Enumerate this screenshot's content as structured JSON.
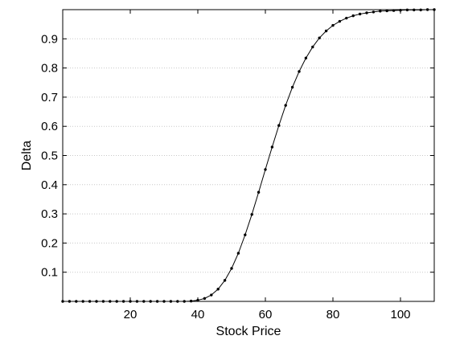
{
  "chart_data": {
    "type": "line",
    "title": "",
    "xlabel": "Stock Price",
    "ylabel": "Delta",
    "xlim": [
      0,
      110
    ],
    "ylim": [
      0,
      1
    ],
    "xticks": [
      20,
      40,
      60,
      80,
      100
    ],
    "yticks": [
      0.1,
      0.2,
      0.3,
      0.4,
      0.5,
      0.6,
      0.7,
      0.8,
      0.9
    ],
    "grid": "horizontal-dotted",
    "legend": "none",
    "series": [
      {
        "color": "#000000",
        "marker": "dot",
        "x": [
          0,
          2,
          4,
          6,
          8,
          10,
          12,
          14,
          16,
          18,
          20,
          22,
          24,
          26,
          28,
          30,
          32,
          34,
          36,
          38,
          40,
          42,
          44,
          46,
          48,
          50,
          52,
          54,
          56,
          58,
          60,
          62,
          64,
          66,
          68,
          70,
          72,
          74,
          76,
          78,
          80,
          82,
          84,
          86,
          88,
          90,
          92,
          94,
          96,
          98,
          100,
          102,
          104,
          106,
          108,
          110
        ],
        "y": [
          0,
          0,
          0,
          0,
          0,
          0,
          0,
          0,
          0,
          0,
          0,
          0,
          0,
          0,
          0,
          0,
          0,
          0,
          0,
          0.001,
          0.004,
          0.01,
          0.022,
          0.042,
          0.072,
          0.113,
          0.165,
          0.228,
          0.298,
          0.374,
          0.452,
          0.529,
          0.603,
          0.672,
          0.734,
          0.788,
          0.834,
          0.872,
          0.903,
          0.927,
          0.946,
          0.96,
          0.971,
          0.979,
          0.985,
          0.989,
          0.992,
          0.995,
          0.996,
          0.997,
          0.998,
          0.999,
          0.999,
          0.999,
          1.0,
          1.0
        ]
      }
    ]
  }
}
